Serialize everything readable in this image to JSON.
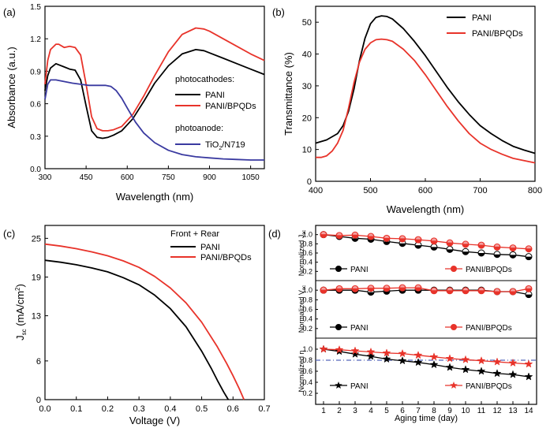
{
  "colors": {
    "black": "#000000",
    "red": "#e8332a",
    "blue": "#3a3aa0",
    "dashed": "#5566bb"
  },
  "chart_data": [
    {
      "id": "a",
      "panel_label": "(a)",
      "type": "line",
      "xlabel": "Wavelength (nm)",
      "ylabel": "Absorbance (a.u.)",
      "xlim": [
        300,
        1100
      ],
      "ylim": [
        0,
        1.5
      ],
      "xticks": [
        300,
        450,
        600,
        750,
        900,
        1050
      ],
      "yticks": [
        0,
        0.3,
        0.6,
        0.9,
        1.2,
        1.5
      ],
      "legend_heading_1": "photocathodes:",
      "legend_heading_2": "photoanode:",
      "series": [
        {
          "name": "PANI",
          "color": "#000000",
          "x": [
            300,
            310,
            320,
            340,
            350,
            370,
            390,
            410,
            430,
            450,
            470,
            490,
            510,
            530,
            550,
            580,
            620,
            660,
            700,
            750,
            800,
            850,
            880,
            900,
            950,
            1000,
            1050,
            1100
          ],
          "y": [
            0.72,
            0.86,
            0.93,
            0.97,
            0.96,
            0.94,
            0.92,
            0.91,
            0.82,
            0.58,
            0.35,
            0.29,
            0.28,
            0.29,
            0.31,
            0.35,
            0.46,
            0.62,
            0.79,
            0.95,
            1.06,
            1.1,
            1.09,
            1.07,
            1.02,
            0.97,
            0.92,
            0.87
          ]
        },
        {
          "name": "PANI/BPQDs",
          "color": "#e8332a",
          "x": [
            300,
            310,
            320,
            340,
            350,
            370,
            390,
            410,
            430,
            450,
            470,
            490,
            510,
            530,
            550,
            580,
            620,
            660,
            700,
            750,
            800,
            850,
            880,
            900,
            950,
            1000,
            1050,
            1100
          ],
          "y": [
            0.78,
            1.0,
            1.1,
            1.15,
            1.15,
            1.12,
            1.13,
            1.12,
            1.05,
            0.78,
            0.48,
            0.37,
            0.35,
            0.35,
            0.36,
            0.39,
            0.5,
            0.67,
            0.86,
            1.08,
            1.24,
            1.3,
            1.29,
            1.27,
            1.2,
            1.13,
            1.06,
            1.0
          ]
        },
        {
          "name": "TiO2/N719",
          "label_main": "TiO",
          "label_sub": "2",
          "label_end": "/N719",
          "color": "#3a3aa0",
          "x": [
            300,
            310,
            320,
            340,
            360,
            380,
            400,
            430,
            460,
            490,
            520,
            540,
            560,
            580,
            600,
            630,
            660,
            700,
            750,
            800,
            850,
            900,
            950,
            1000,
            1050,
            1100
          ],
          "y": [
            0.64,
            0.78,
            0.82,
            0.82,
            0.81,
            0.8,
            0.79,
            0.78,
            0.77,
            0.77,
            0.77,
            0.76,
            0.72,
            0.65,
            0.56,
            0.43,
            0.33,
            0.24,
            0.17,
            0.13,
            0.11,
            0.1,
            0.09,
            0.085,
            0.08,
            0.08
          ]
        }
      ]
    },
    {
      "id": "b",
      "panel_label": "(b)",
      "type": "line",
      "xlabel": "Wavelength (nm)",
      "ylabel": "Transmittance (%)",
      "xlim": [
        400,
        800
      ],
      "ylim": [
        0,
        55
      ],
      "xticks": [
        400,
        500,
        600,
        700,
        800
      ],
      "yticks": [
        0,
        10,
        20,
        30,
        40,
        50
      ],
      "series": [
        {
          "name": "PANI",
          "color": "#000000",
          "x": [
            400,
            420,
            440,
            450,
            460,
            470,
            480,
            490,
            500,
            510,
            520,
            530,
            540,
            560,
            580,
            600,
            620,
            640,
            660,
            680,
            700,
            720,
            740,
            760,
            780,
            800
          ],
          "y": [
            12,
            13,
            15,
            17.5,
            22,
            29,
            38,
            45,
            49.5,
            51.5,
            52,
            51.8,
            51,
            48,
            44,
            39.5,
            34.5,
            29.5,
            25,
            21,
            17.5,
            15,
            12.8,
            11,
            9.8,
            8.8
          ]
        },
        {
          "name": "PANI/BPQDs",
          "color": "#e8332a",
          "x": [
            400,
            410,
            420,
            430,
            440,
            450,
            460,
            470,
            480,
            490,
            500,
            510,
            520,
            530,
            540,
            560,
            580,
            600,
            620,
            640,
            660,
            680,
            700,
            720,
            740,
            760,
            780,
            800
          ],
          "y": [
            7.5,
            7.5,
            8,
            9.5,
            12,
            16,
            23,
            31,
            37.5,
            41.5,
            43.5,
            44.5,
            44.7,
            44.5,
            44,
            41.5,
            38,
            33.5,
            28.5,
            23.5,
            19,
            15,
            12,
            10,
            8.5,
            7.2,
            6.5,
            5.8
          ]
        }
      ]
    },
    {
      "id": "c",
      "panel_label": "(c)",
      "type": "line",
      "xlabel": "Voltage (V)",
      "ylabel_main": "J",
      "ylabel_sub": "sc",
      "ylabel_end": " (mA/cm",
      "ylabel_sup": "2",
      "ylabel_close": ")",
      "xlim": [
        0,
        0.7
      ],
      "ylim": [
        0,
        27
      ],
      "xticks": [
        0.0,
        0.1,
        0.2,
        0.3,
        0.4,
        0.5,
        0.6,
        0.7
      ],
      "xtick_labels": [
        "0.0",
        "0.1",
        "0.2",
        "0.3",
        "0.4",
        "0.5",
        "0.6",
        "0.7"
      ],
      "yticks": [
        0,
        6,
        13,
        19,
        25
      ],
      "legend_heading": "Front + Rear",
      "series": [
        {
          "name": "PANI",
          "color": "#000000",
          "x": [
            0,
            0.05,
            0.1,
            0.15,
            0.2,
            0.25,
            0.3,
            0.35,
            0.4,
            0.45,
            0.5,
            0.53,
            0.55,
            0.57,
            0.585
          ],
          "y": [
            21.6,
            21.3,
            20.9,
            20.4,
            19.8,
            18.9,
            17.8,
            16.2,
            14.1,
            11.3,
            7.5,
            4.9,
            3.0,
            1.2,
            0
          ]
        },
        {
          "name": "PANI/BPQDs",
          "color": "#e8332a",
          "x": [
            0,
            0.05,
            0.1,
            0.15,
            0.2,
            0.25,
            0.3,
            0.35,
            0.4,
            0.45,
            0.5,
            0.55,
            0.58,
            0.6,
            0.62,
            0.635
          ],
          "y": [
            24.1,
            23.8,
            23.4,
            22.9,
            22.3,
            21.5,
            20.5,
            19.1,
            17.3,
            15.0,
            12.0,
            8.2,
            5.6,
            3.7,
            1.7,
            0
          ]
        }
      ]
    },
    {
      "id": "d",
      "panel_label": "(d)",
      "type": "line",
      "xlabel": "Aging time (day)",
      "x": [
        1,
        2,
        3,
        4,
        5,
        6,
        7,
        8,
        9,
        10,
        11,
        12,
        13,
        14
      ],
      "xlim": [
        0.5,
        14.5
      ],
      "xticks": [
        1,
        2,
        3,
        4,
        5,
        6,
        7,
        8,
        9,
        10,
        11,
        12,
        13,
        14
      ],
      "subplots": [
        {
          "ylabel_main": "Normalized J",
          "ylabel_sub": "sc",
          "ylim": [
            0,
            1.2
          ],
          "yticks": [
            0.0,
            0.2,
            0.4,
            0.6,
            0.8,
            1.0,
            1.2
          ],
          "series": [
            {
              "name": "PANI",
              "color": "#000000",
              "marker": "circle",
              "values": [
                1.0,
                0.96,
                0.92,
                0.9,
                0.85,
                0.81,
                0.77,
                0.73,
                0.68,
                0.63,
                0.6,
                0.57,
                0.56,
                0.52
              ]
            },
            {
              "name": "PANI/BPQDs",
              "color": "#e8332a",
              "marker": "circle",
              "values": [
                1.0,
                0.98,
                0.99,
                0.96,
                0.92,
                0.91,
                0.89,
                0.86,
                0.82,
                0.79,
                0.77,
                0.73,
                0.71,
                0.69
              ]
            }
          ]
        },
        {
          "ylabel_main": "Normalized V",
          "ylabel_sub": "oc",
          "ylim": [
            0,
            1.2
          ],
          "yticks": [
            0.0,
            0.2,
            0.4,
            0.6,
            0.8,
            1.0,
            1.2
          ],
          "series": [
            {
              "name": "PANI",
              "color": "#000000",
              "marker": "circle",
              "values": [
                1.0,
                1.0,
                1.0,
                0.96,
                0.98,
                1.0,
                1.0,
                1.0,
                1.0,
                1.0,
                1.0,
                0.97,
                0.97,
                0.91
              ]
            },
            {
              "name": "PANI/BPQDs",
              "color": "#e8332a",
              "marker": "circle",
              "values": [
                1.0,
                1.03,
                1.03,
                1.04,
                1.04,
                1.05,
                1.05,
                0.99,
                0.99,
                0.99,
                0.99,
                0.97,
                0.97,
                1.03
              ]
            }
          ]
        },
        {
          "ylabel_main": "Normalized η",
          "ylim": [
            0,
            1.2
          ],
          "yticks": [
            0.0,
            0.2,
            0.4,
            0.6,
            0.8,
            1.0
          ],
          "reference_line": 0.8,
          "series": [
            {
              "name": "PANI",
              "color": "#000000",
              "marker": "star",
              "values": [
                1.0,
                0.96,
                0.91,
                0.87,
                0.82,
                0.79,
                0.76,
                0.72,
                0.67,
                0.63,
                0.6,
                0.56,
                0.54,
                0.5
              ]
            },
            {
              "name": "PANI/BPQDs",
              "color": "#e8332a",
              "marker": "star",
              "values": [
                1.0,
                0.99,
                0.97,
                0.95,
                0.93,
                0.92,
                0.89,
                0.86,
                0.83,
                0.81,
                0.79,
                0.77,
                0.75,
                0.73
              ]
            }
          ]
        }
      ]
    }
  ]
}
